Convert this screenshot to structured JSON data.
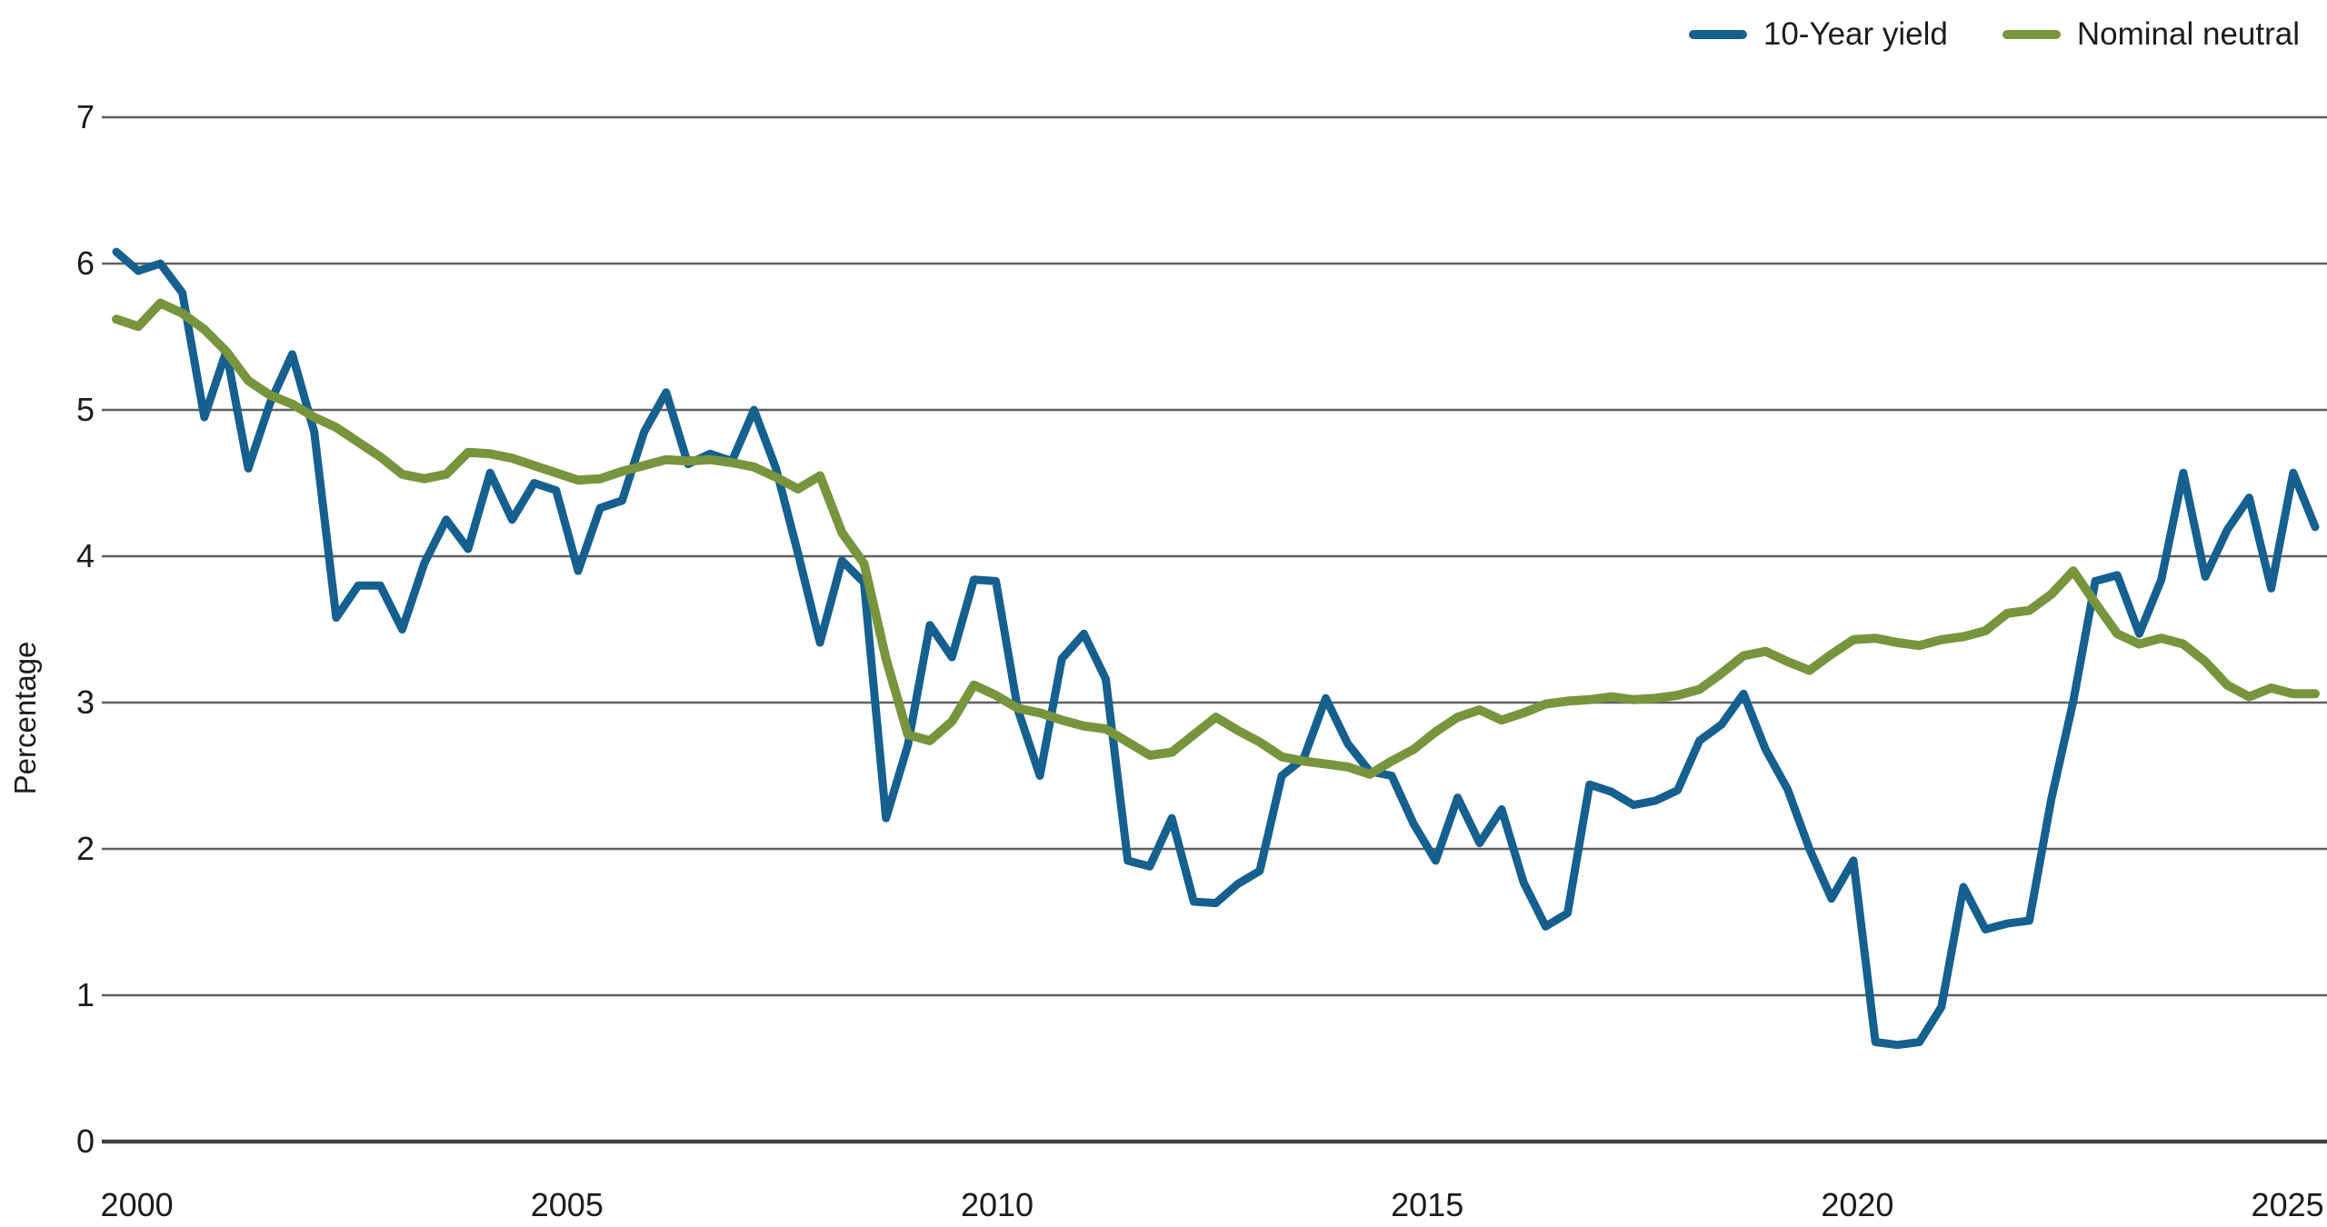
{
  "chart_data": {
    "type": "line",
    "title": "",
    "xlabel": "",
    "ylabel": "Percentage",
    "ylim": [
      0,
      7
    ],
    "yticks": [
      0,
      1,
      2,
      3,
      4,
      5,
      6,
      7
    ],
    "xticks": [
      2000,
      2005,
      2010,
      2015,
      2020,
      2025
    ],
    "grid": "horizontal",
    "legend_position": "top-right",
    "x_start": 2000.0,
    "x_step_years": 0.25,
    "x_end": 2025.0,
    "series": [
      {
        "name": "10-Year yield",
        "color": "#15608e",
        "values": [
          6.08,
          5.95,
          6.0,
          5.8,
          4.95,
          5.4,
          4.6,
          5.05,
          5.38,
          4.85,
          3.58,
          3.8,
          3.8,
          3.5,
          3.95,
          4.25,
          4.05,
          4.57,
          4.25,
          4.5,
          4.45,
          3.9,
          4.33,
          4.38,
          4.85,
          5.12,
          4.63,
          4.7,
          4.65,
          5.0,
          4.6,
          4.02,
          3.41,
          3.97,
          3.82,
          2.21,
          2.71,
          3.53,
          3.31,
          3.84,
          3.83,
          2.95,
          2.5,
          3.3,
          3.47,
          3.16,
          1.92,
          1.88,
          2.21,
          1.64,
          1.63,
          1.76,
          1.85,
          2.5,
          2.62,
          3.03,
          2.72,
          2.53,
          2.5,
          2.17,
          1.92,
          2.35,
          2.04,
          2.27,
          1.77,
          1.47,
          1.56,
          2.44,
          2.39,
          2.3,
          2.33,
          2.4,
          2.74,
          2.85,
          3.06,
          2.68,
          2.41,
          2.0,
          1.66,
          1.92,
          0.68,
          0.66,
          0.68,
          0.92,
          1.74,
          1.45,
          1.49,
          1.51,
          2.34,
          3.01,
          3.83,
          3.87,
          3.47,
          3.84,
          4.57,
          3.86,
          4.18,
          4.4,
          3.78,
          4.57,
          4.2
        ]
      },
      {
        "name": "Nominal neutral",
        "color": "#78953e",
        "values": [
          5.62,
          5.57,
          5.73,
          5.66,
          5.55,
          5.4,
          5.2,
          5.1,
          5.04,
          4.95,
          4.88,
          4.78,
          4.68,
          4.56,
          4.53,
          4.56,
          4.71,
          4.7,
          4.67,
          4.62,
          4.57,
          4.52,
          4.53,
          4.58,
          4.62,
          4.66,
          4.65,
          4.66,
          4.64,
          4.61,
          4.54,
          4.46,
          4.55,
          4.16,
          3.95,
          3.3,
          2.78,
          2.74,
          2.87,
          3.12,
          3.05,
          2.96,
          2.93,
          2.88,
          2.84,
          2.82,
          2.73,
          2.64,
          2.66,
          2.78,
          2.9,
          2.81,
          2.73,
          2.63,
          2.6,
          2.58,
          2.56,
          2.51,
          2.6,
          2.68,
          2.8,
          2.9,
          2.95,
          2.88,
          2.93,
          2.99,
          3.01,
          3.02,
          3.04,
          3.02,
          3.03,
          3.05,
          3.09,
          3.2,
          3.32,
          3.35,
          3.28,
          3.22,
          3.33,
          3.43,
          3.44,
          3.41,
          3.39,
          3.43,
          3.45,
          3.49,
          3.61,
          3.63,
          3.74,
          3.9,
          3.68,
          3.47,
          3.4,
          3.44,
          3.4,
          3.28,
          3.12,
          3.04,
          3.1,
          3.06,
          3.06
        ]
      }
    ]
  },
  "legend": {
    "items": [
      {
        "label": "10-Year yield",
        "color": "#15608e"
      },
      {
        "label": "Nominal neutral",
        "color": "#78953e"
      }
    ]
  },
  "axes": {
    "y_title": "Percentage"
  },
  "style": {
    "background": "#ffffff",
    "grid_color": "#5e5f61",
    "axis_color": "#3f4043",
    "text_color": "#1c1c1c",
    "blue": "#15608e",
    "green": "#78953e"
  }
}
